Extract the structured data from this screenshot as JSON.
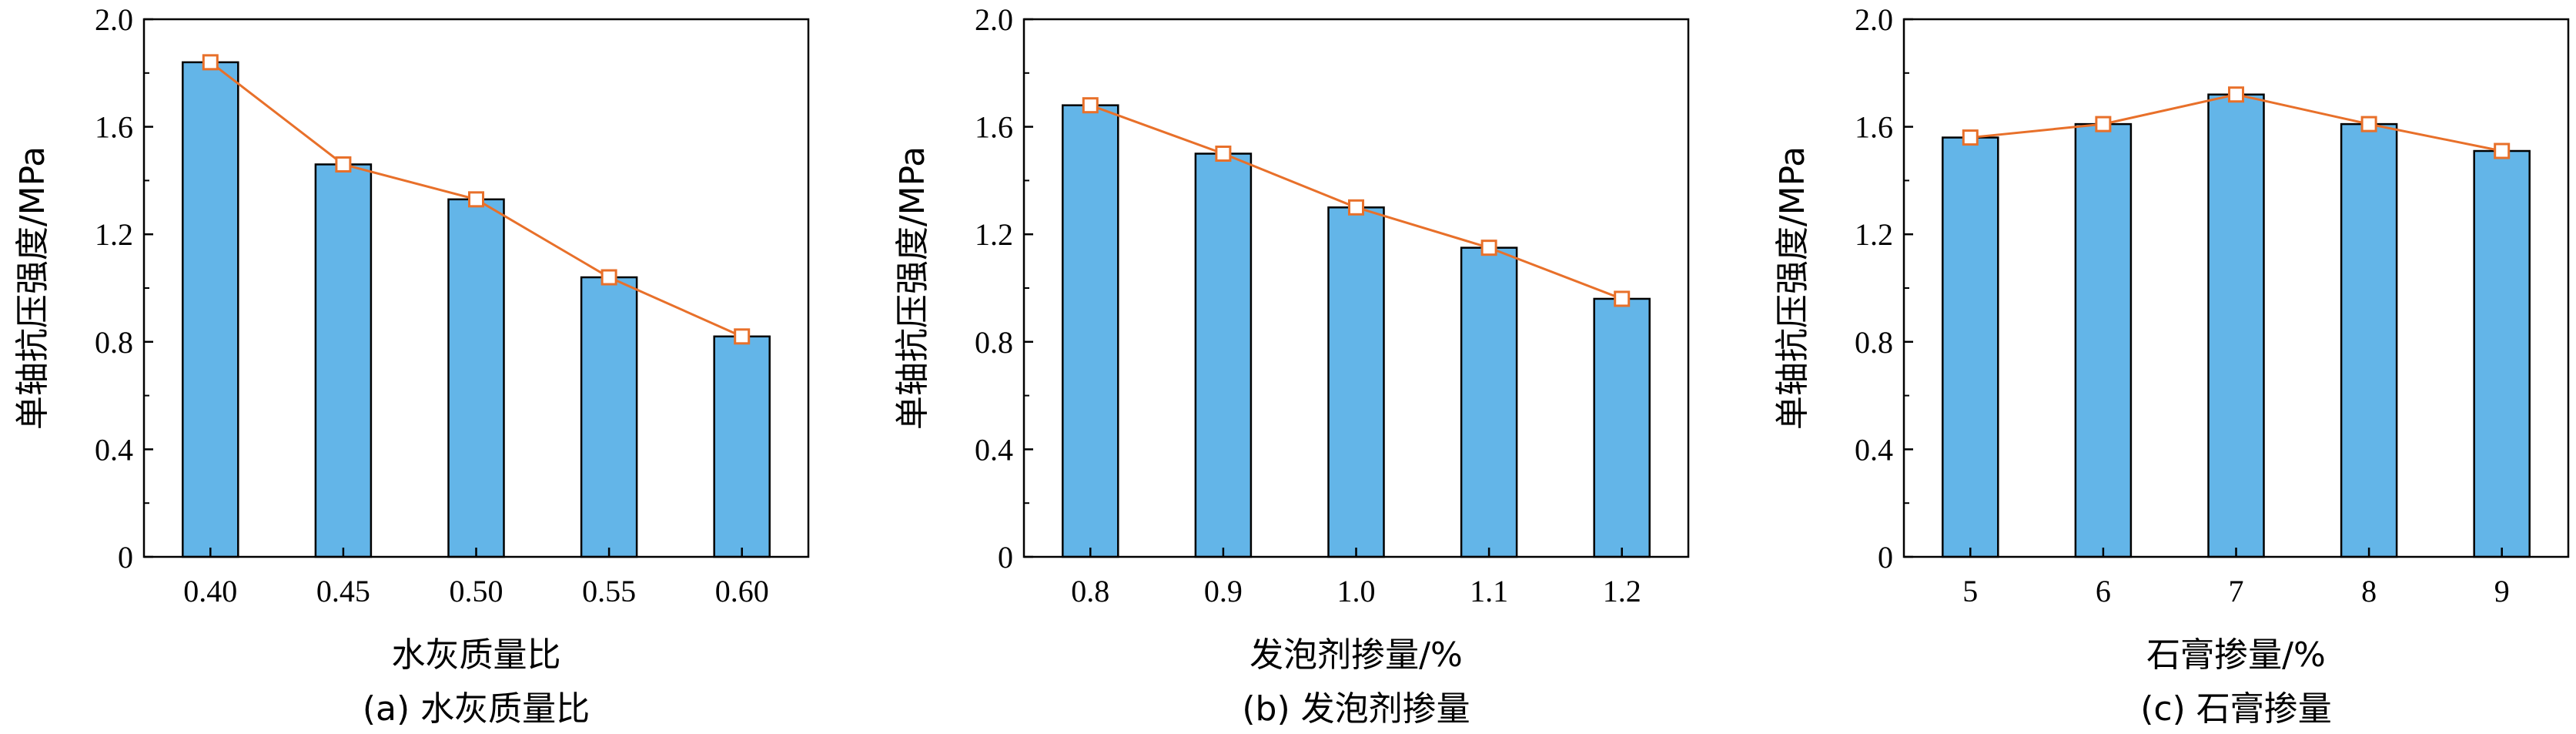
{
  "colors": {
    "bar_fill": "#63b5e8",
    "bar_stroke": "#000000",
    "line": "#e8702a",
    "marker_fill": "#ffffff",
    "axis": "#000000"
  },
  "chart_data": [
    {
      "type": "bar",
      "overlay": "line-with-square-markers",
      "categories": [
        "0.40",
        "0.45",
        "0.50",
        "0.55",
        "0.60"
      ],
      "values": [
        1.84,
        1.46,
        1.33,
        1.04,
        0.82
      ],
      "xlabel": "水灰质量比",
      "ylabel": "单轴抗压强度/MPa",
      "caption": "(a) 水灰质量比",
      "ylim": [
        0,
        2.0
      ],
      "yticks": [
        "0",
        "0.4",
        "0.8",
        "1.2",
        "1.6",
        "2.0"
      ],
      "grid": false
    },
    {
      "type": "bar",
      "overlay": "line-with-square-markers",
      "categories": [
        "0.8",
        "0.9",
        "1.0",
        "1.1",
        "1.2"
      ],
      "values": [
        1.68,
        1.5,
        1.3,
        1.15,
        0.96
      ],
      "xlabel": "发泡剂掺量/%",
      "ylabel": "单轴抗压强度/MPa",
      "caption": "(b) 发泡剂掺量",
      "ylim": [
        0,
        2.0
      ],
      "yticks": [
        "0",
        "0.4",
        "0.8",
        "1.2",
        "1.6",
        "2.0"
      ],
      "grid": false
    },
    {
      "type": "bar",
      "overlay": "line-with-square-markers",
      "categories": [
        "5",
        "6",
        "7",
        "8",
        "9"
      ],
      "values": [
        1.56,
        1.61,
        1.72,
        1.61,
        1.51
      ],
      "xlabel": "石膏掺量/%",
      "ylabel": "单轴抗压强度/MPa",
      "caption": "(c) 石膏掺量",
      "ylim": [
        0,
        2.0
      ],
      "yticks": [
        "0",
        "0.4",
        "0.8",
        "1.2",
        "1.6",
        "2.0"
      ],
      "grid": false
    }
  ]
}
